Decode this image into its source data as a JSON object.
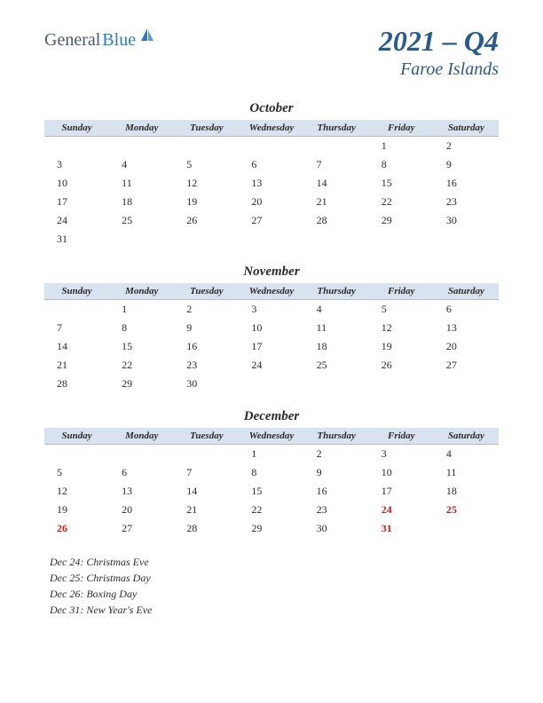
{
  "logo": {
    "text1": "General",
    "text2": "Blue"
  },
  "title": {
    "yearQuarter": "2021 – Q4",
    "location": "Faroe Islands"
  },
  "colors": {
    "headerBg": "#d9e3f0",
    "titleColor": "#2c5a8a",
    "textColor": "#2a2a2a",
    "holidayColor": "#c02020",
    "logoGray": "#4a5a6a",
    "logoBlue": "#2b7bbf"
  },
  "dayHeaders": [
    "Sunday",
    "Monday",
    "Tuesday",
    "Wednesday",
    "Thursday",
    "Friday",
    "Saturday"
  ],
  "months": [
    {
      "name": "October",
      "weeks": [
        [
          "",
          "",
          "",
          "",
          "",
          "1",
          "2"
        ],
        [
          "3",
          "4",
          "5",
          "6",
          "7",
          "8",
          "9"
        ],
        [
          "10",
          "11",
          "12",
          "13",
          "14",
          "15",
          "16"
        ],
        [
          "17",
          "18",
          "19",
          "20",
          "21",
          "22",
          "23"
        ],
        [
          "24",
          "25",
          "26",
          "27",
          "28",
          "29",
          "30"
        ],
        [
          "31",
          "",
          "",
          "",
          "",
          "",
          ""
        ]
      ],
      "holidays": []
    },
    {
      "name": "November",
      "weeks": [
        [
          "",
          "1",
          "2",
          "3",
          "4",
          "5",
          "6"
        ],
        [
          "7",
          "8",
          "9",
          "10",
          "11",
          "12",
          "13"
        ],
        [
          "14",
          "15",
          "16",
          "17",
          "18",
          "19",
          "20"
        ],
        [
          "21",
          "22",
          "23",
          "24",
          "25",
          "26",
          "27"
        ],
        [
          "28",
          "29",
          "30",
          "",
          "",
          "",
          ""
        ]
      ],
      "holidays": []
    },
    {
      "name": "December",
      "weeks": [
        [
          "",
          "",
          "",
          "1",
          "2",
          "3",
          "4"
        ],
        [
          "5",
          "6",
          "7",
          "8",
          "9",
          "10",
          "11"
        ],
        [
          "12",
          "13",
          "14",
          "15",
          "16",
          "17",
          "18"
        ],
        [
          "19",
          "20",
          "21",
          "22",
          "23",
          "24",
          "25"
        ],
        [
          "26",
          "27",
          "28",
          "29",
          "30",
          "31",
          ""
        ]
      ],
      "holidays": [
        "24",
        "25",
        "26",
        "31"
      ]
    }
  ],
  "holidayList": [
    "Dec 24: Christmas Eve",
    "Dec 25: Christmas Day",
    "Dec 26: Boxing Day",
    "Dec 31: New Year's Eve"
  ]
}
